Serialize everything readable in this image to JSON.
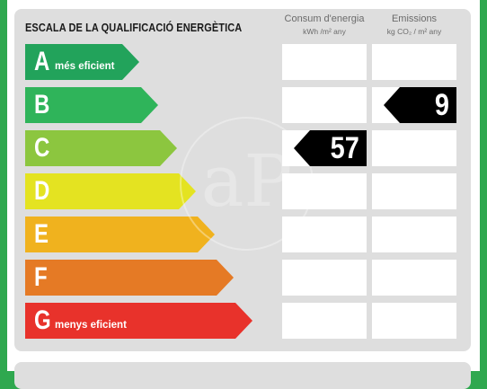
{
  "header": {
    "title": "ESCALA DE LA QUALIFICACIÓ ENERGÈTICA",
    "consum_title": "Consum d'energia",
    "consum_unit": "kWh /m² any",
    "emissions_title": "Emissions",
    "emissions_unit": "kg CO₂ / m² any"
  },
  "ratings": [
    {
      "letter": "A",
      "sublabel": "més eficient",
      "color": "#22a35b"
    },
    {
      "letter": "B",
      "sublabel": "",
      "color": "#2fb45a"
    },
    {
      "letter": "C",
      "sublabel": "",
      "color": "#8cc63f"
    },
    {
      "letter": "D",
      "sublabel": "",
      "color": "#e4e321"
    },
    {
      "letter": "E",
      "sublabel": "",
      "color": "#f0b21e"
    },
    {
      "letter": "F",
      "sublabel": "",
      "color": "#e57a25"
    },
    {
      "letter": "G",
      "sublabel": "menys eficient",
      "color": "#e8322b"
    }
  ],
  "consumption": {
    "value": "57",
    "rating": "C"
  },
  "emissions": {
    "value": "9",
    "rating": "B"
  },
  "watermark_icon": "logo-watermark"
}
